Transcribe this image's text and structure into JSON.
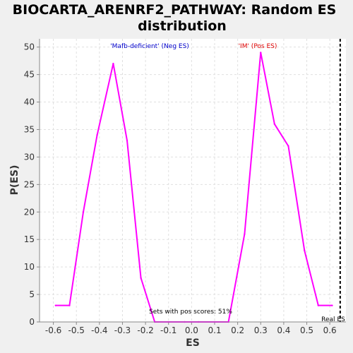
{
  "chart_data": {
    "type": "line",
    "title": "BIOCARTA_ARENRF2_PATHWAY: Random ES distribution",
    "title_lines": [
      "BIOCARTA_ARENRF2_PATHWAY: Random ES",
      "distribution"
    ],
    "xlabel": "ES",
    "ylabel": "P(ES)",
    "xlim": [
      -0.66,
      0.67
    ],
    "ylim": [
      0,
      51.5
    ],
    "xticks": [
      -0.6,
      -0.5,
      -0.4,
      -0.3,
      -0.2,
      -0.1,
      0.0,
      0.1,
      0.2,
      0.3,
      0.4,
      0.5,
      0.6
    ],
    "xtick_labels": [
      "-0.6",
      "-0.5",
      "-0.4",
      "-0.3",
      "-0.2",
      "-0.1",
      "0.0",
      "0.1",
      "0.2",
      "0.3",
      "0.4",
      "0.5",
      "0.6"
    ],
    "yticks": [
      0,
      5,
      10,
      15,
      20,
      25,
      30,
      35,
      40,
      45,
      50
    ],
    "ytick_labels": [
      "0",
      "5",
      "10",
      "15",
      "20",
      "25",
      "30",
      "35",
      "40",
      "45",
      "50"
    ],
    "grid": true,
    "series": [
      {
        "x": [
          -0.59,
          -0.53,
          -0.47,
          -0.41,
          -0.34,
          -0.28,
          -0.22,
          -0.16,
          -0.1,
          -0.03,
          0.03,
          0.1,
          0.16,
          0.23,
          0.3,
          0.36,
          0.42,
          0.49,
          0.55,
          0.61
        ],
        "y": [
          3,
          3,
          20,
          34,
          47,
          33,
          8,
          0,
          0,
          0,
          0,
          0,
          0,
          16,
          49,
          36,
          32,
          13,
          3,
          3
        ],
        "color": "#ff00ff"
      }
    ],
    "real_es": 0.645,
    "annotations": {
      "neg_label": "'Mafb-deficient' (Neg ES)",
      "pos_label": "'IM' (Pos ES)",
      "pos_scores_label": "Sets with pos scores: 51%",
      "real_es_label": "Real ES"
    },
    "colors": {
      "line": "#ff00ff",
      "neg_label": "#0000cc",
      "pos_label": "#dd0000",
      "grid": "#e0e0e0",
      "plot_bg": "#ffffff",
      "page_bg": "#f0f0f0"
    }
  }
}
